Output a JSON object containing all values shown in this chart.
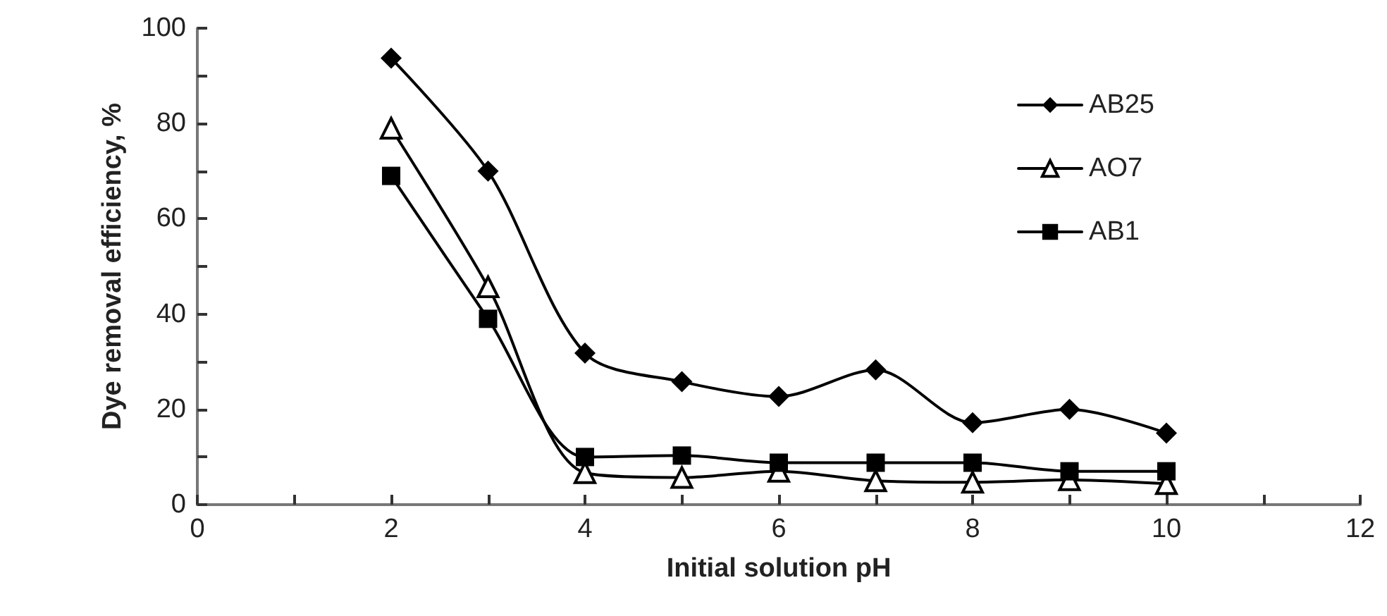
{
  "chart_data": {
    "type": "line",
    "xlabel": "Initial solution pH",
    "ylabel": "Dye removal efficiency, %",
    "x": [
      2,
      3,
      4,
      5,
      6,
      7,
      8,
      9,
      10
    ],
    "series": [
      {
        "name": "AB25",
        "color": "#000000",
        "marker": "diamond",
        "values": [
          93.7,
          70,
          31.8,
          25.8,
          22.7,
          28.3,
          17.2,
          20,
          15
        ]
      },
      {
        "name": "AO7",
        "color": "#000000",
        "marker": "triangle",
        "values": [
          79,
          45.7,
          6.7,
          5.7,
          7,
          5,
          4.7,
          5.2,
          4.4
        ]
      },
      {
        "name": "AB1",
        "color": "#000000",
        "marker": "square",
        "values": [
          69,
          39,
          10,
          10.3,
          8.8,
          8.8,
          8.8,
          7,
          7
        ]
      }
    ],
    "xlim": [
      0,
      12
    ],
    "xticks": [
      0,
      {
        "value": 1,
        "label": null
      },
      2,
      {
        "value": 3,
        "label": null
      },
      4,
      {
        "value": 5,
        "label": null
      },
      6,
      {
        "value": 7,
        "label": null
      },
      8,
      {
        "value": 9,
        "label": null
      },
      10,
      {
        "value": 11,
        "label": null
      },
      12
    ],
    "ylim": [
      0,
      100
    ],
    "yticks": [
      0,
      {
        "value": 10,
        "label": null
      },
      20,
      {
        "value": 30,
        "label": null
      },
      40,
      {
        "value": 50,
        "label": null
      },
      60,
      {
        "value": 70,
        "label": null
      },
      80,
      {
        "value": 90,
        "label": null
      },
      100
    ],
    "legend": "top right",
    "grid": false,
    "line_style": "solid"
  }
}
